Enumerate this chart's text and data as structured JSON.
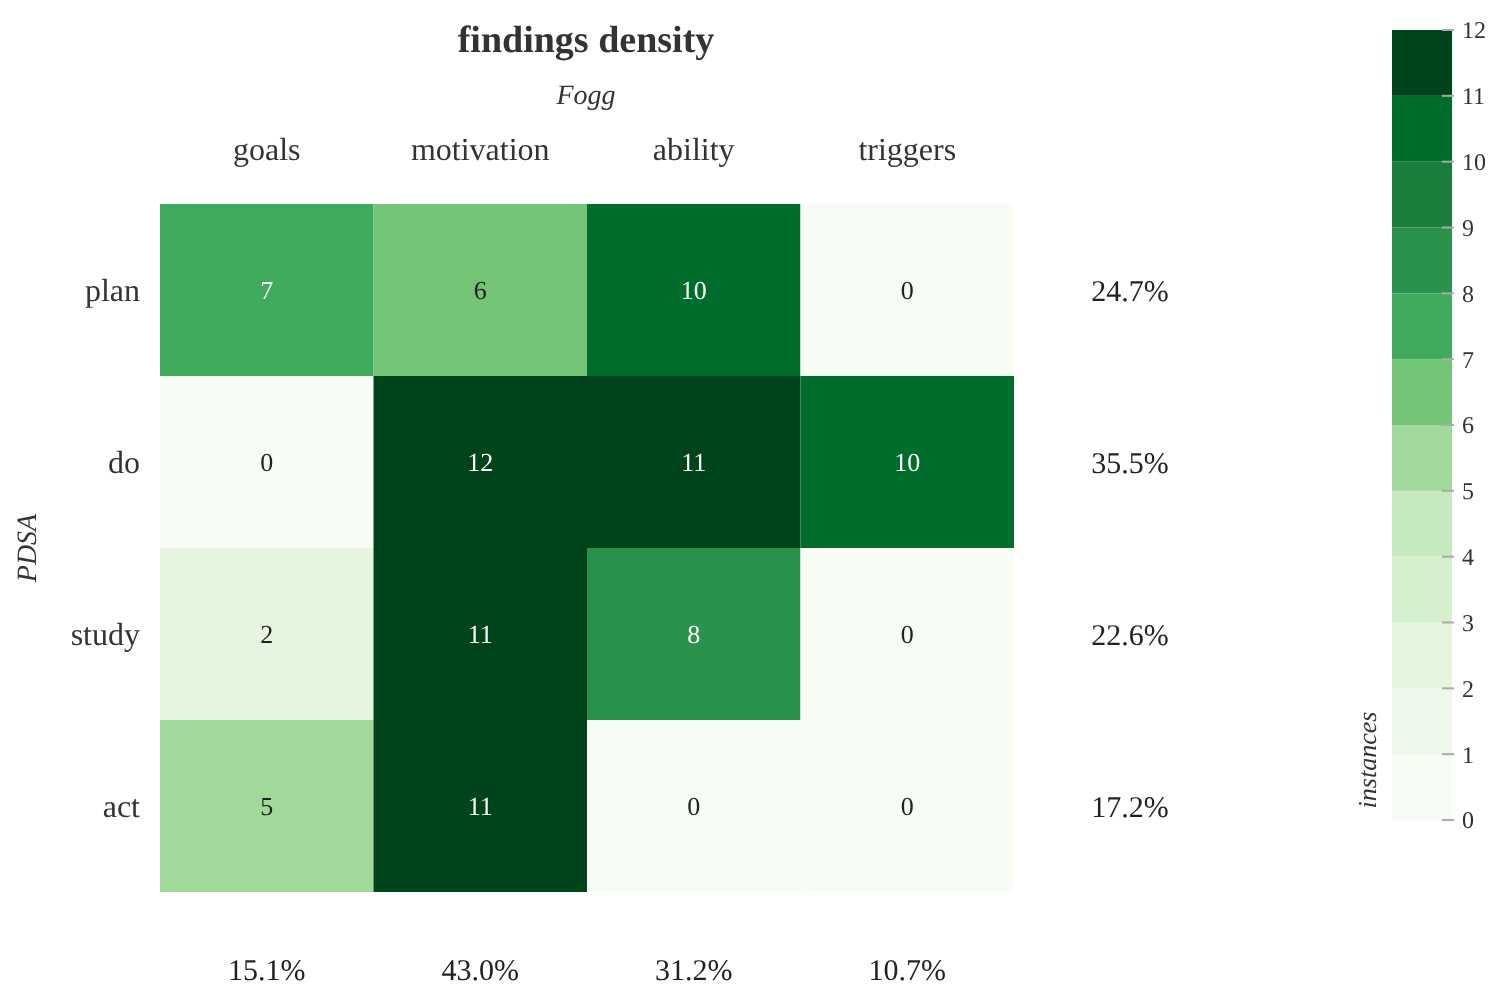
{
  "chart_data": {
    "type": "heatmap",
    "title": "findings density",
    "xlabel": "Fogg",
    "ylabel": "PDSA",
    "clabel": "instances",
    "categories": [
      "goals",
      "motivation",
      "ability",
      "triggers"
    ],
    "y_categories": [
      "plan",
      "do",
      "study",
      "act"
    ],
    "y2_categories": [
      "24.7%",
      "35.5%",
      "22.6%",
      "17.2%"
    ],
    "cells": [
      [
        7,
        6,
        10,
        0
      ],
      [
        0,
        12,
        11,
        10
      ],
      [
        2,
        11,
        8,
        0
      ],
      [
        5,
        11,
        0,
        0
      ]
    ],
    "data_labels": true,
    "clim": [
      0,
      12
    ],
    "cticks": [
      0,
      1,
      2,
      3,
      4,
      5,
      6,
      7,
      8,
      9,
      10,
      11,
      12
    ],
    "colors": [
      "#f7fcf5",
      "#eef8ea",
      "#e5f5e0",
      "#d5efcf",
      "#c7e9c0",
      "#a1d99b",
      "#74c476",
      "#41ab5d",
      "#2a924a",
      "#1a7f3c",
      "#006d2c",
      "#00441b"
    ],
    "annotations": [
      "15.1%",
      "43.0%",
      "31.2%",
      "10.7%"
    ]
  }
}
